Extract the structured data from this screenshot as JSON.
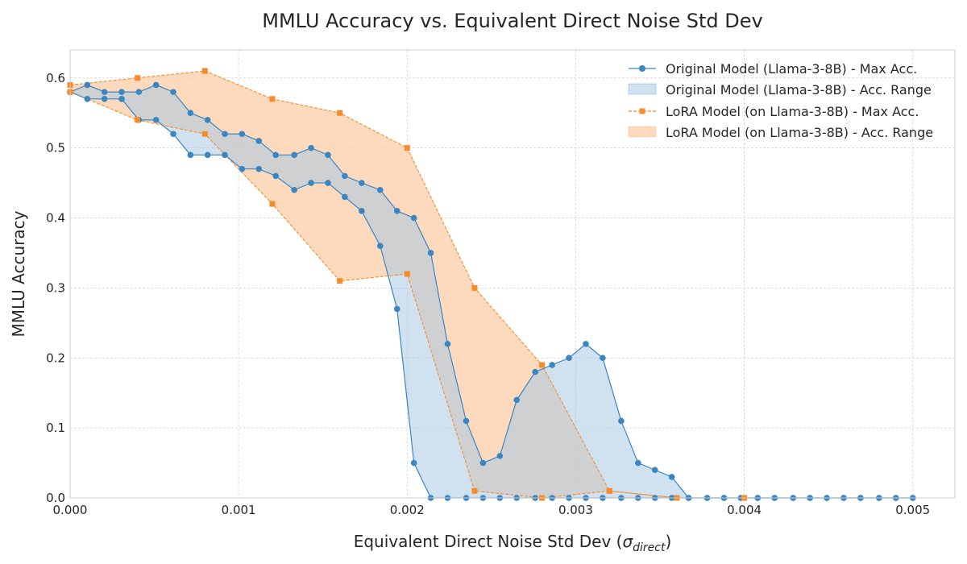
{
  "chart_data": {
    "type": "line",
    "title": "MMLU Accuracy vs. Equivalent Direct Noise Std Dev",
    "xlabel_prefix": "Equivalent Direct Noise Std Dev (",
    "xlabel_symbol": "σ",
    "xlabel_subscript": "direct",
    "xlabel_suffix": ")",
    "ylabel": "MMLU Accuracy",
    "xlim": [
      0,
      0.00525
    ],
    "ylim": [
      0,
      0.64
    ],
    "x_ticks": [
      0,
      0.001,
      0.002,
      0.003,
      0.004,
      0.005
    ],
    "x_tick_labels": [
      "0.000",
      "0.001",
      "0.002",
      "0.003",
      "0.004",
      "0.005"
    ],
    "y_ticks": [
      0,
      0.1,
      0.2,
      0.3,
      0.4,
      0.5,
      0.6
    ],
    "y_tick_labels": [
      "0.0",
      "0.1",
      "0.2",
      "0.3",
      "0.4",
      "0.5",
      "0.6"
    ],
    "grid": true,
    "legend_position": "top-right",
    "colors": {
      "original": "#3a86c1",
      "original_fill": "#a9c9e4",
      "lora": "#f68b2b",
      "lora_fill": "#fdd0ad"
    },
    "series": [
      {
        "name": "Original Model (Llama-3-8B)",
        "legend_max": "Original Model (Llama-3-8B) - Max Acc.",
        "legend_range": "Original Model (Llama-3-8B) - Acc. Range",
        "x": [
          0,
          0.000102,
          0.000204,
          0.000306,
          0.000408,
          0.00051,
          0.000612,
          0.000714,
          0.000816,
          0.000918,
          0.00102,
          0.00112,
          0.00122,
          0.00133,
          0.00143,
          0.00153,
          0.00163,
          0.00173,
          0.00184,
          0.00194,
          0.00204,
          0.00214,
          0.00224,
          0.00235,
          0.00245,
          0.00255,
          0.00265,
          0.00276,
          0.00286,
          0.00296,
          0.00306,
          0.00316,
          0.00327,
          0.00337,
          0.00347,
          0.00357,
          0.00367,
          0.00378,
          0.00388,
          0.00398,
          0.00408,
          0.00418,
          0.00429,
          0.00439,
          0.00449,
          0.00459,
          0.00469,
          0.0048,
          0.0049,
          0.005
        ],
        "max": [
          0.58,
          0.59,
          0.58,
          0.58,
          0.58,
          0.59,
          0.58,
          0.55,
          0.54,
          0.52,
          0.52,
          0.51,
          0.49,
          0.49,
          0.5,
          0.49,
          0.46,
          0.45,
          0.44,
          0.41,
          0.4,
          0.35,
          0.22,
          0.11,
          0.05,
          0.06,
          0.14,
          0.18,
          0.19,
          0.2,
          0.22,
          0.2,
          0.11,
          0.05,
          0.04,
          0.03,
          0,
          0,
          0,
          0,
          0,
          0,
          0,
          0,
          0,
          0,
          0,
          0,
          0,
          0
        ],
        "min": [
          0.58,
          0.57,
          0.57,
          0.57,
          0.54,
          0.54,
          0.52,
          0.49,
          0.49,
          0.49,
          0.47,
          0.47,
          0.46,
          0.44,
          0.45,
          0.45,
          0.43,
          0.41,
          0.36,
          0.27,
          0.05,
          0,
          0,
          0,
          0,
          0,
          0,
          0,
          0,
          0,
          0,
          0,
          0,
          0,
          0,
          0,
          0,
          0,
          0,
          0,
          0,
          0,
          0,
          0,
          0,
          0,
          0,
          0,
          0,
          0
        ]
      },
      {
        "name": "LoRA Model (on Llama-3-8B)",
        "legend_max": "LoRA Model (on Llama-3-8B) - Max Acc.",
        "legend_range": "LoRA Model (on Llama-3-8B) - Acc. Range",
        "x": [
          0,
          0.0004,
          0.0008,
          0.0012,
          0.0016,
          0.002,
          0.0024,
          0.0028,
          0.0032,
          0.0036,
          0.004
        ],
        "max": [
          0.59,
          0.6,
          0.61,
          0.57,
          0.55,
          0.5,
          0.3,
          0.19,
          0.01,
          0,
          0
        ],
        "min": [
          0.58,
          0.54,
          0.52,
          0.42,
          0.31,
          0.32,
          0.01,
          0,
          0.01,
          0,
          0
        ]
      }
    ]
  }
}
